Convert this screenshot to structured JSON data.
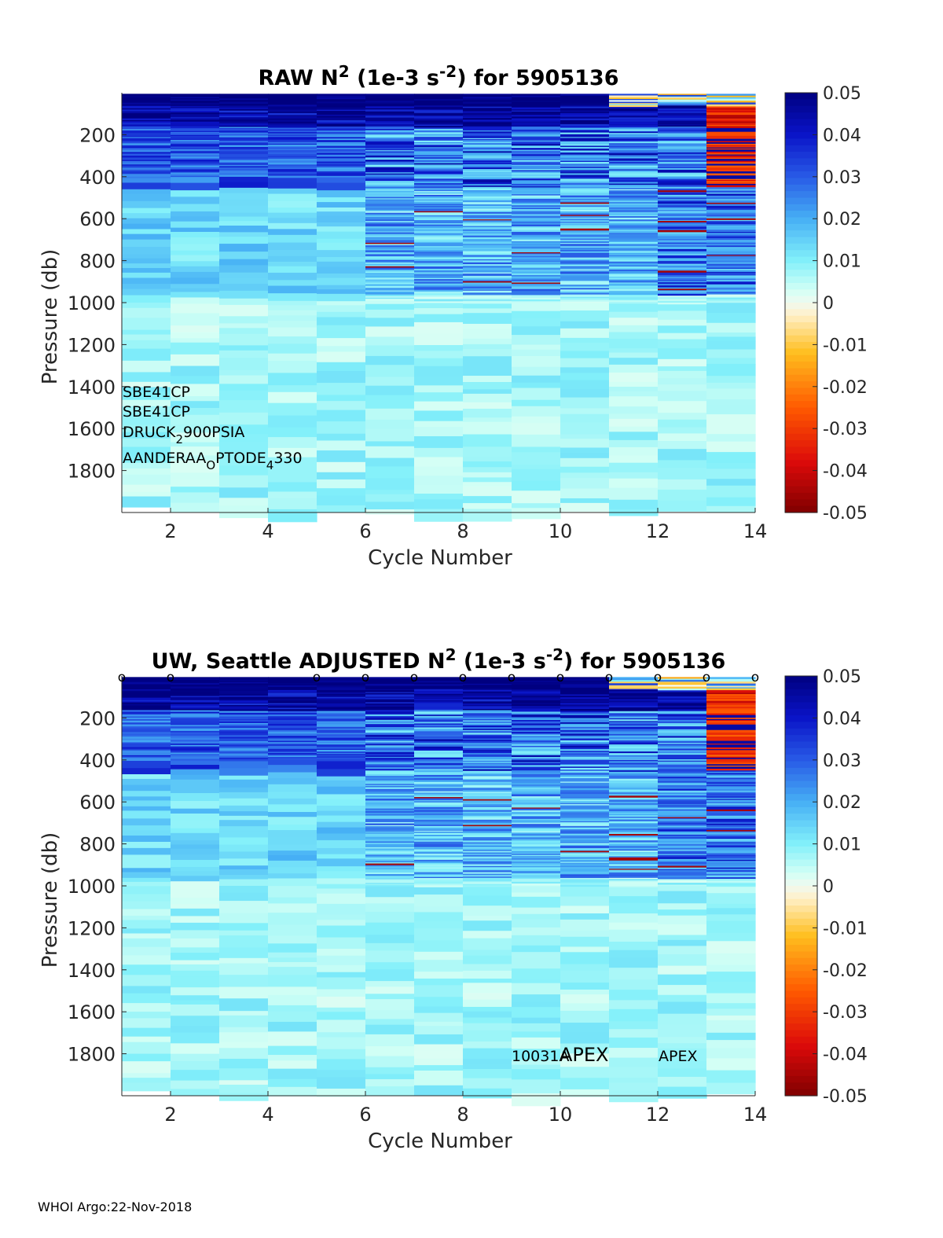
{
  "chart_data": [
    {
      "type": "heatmap",
      "title_parts": [
        "RAW N",
        "2",
        " (1e-3 s",
        "-2",
        ") for 5905136"
      ],
      "xlabel": "Cycle Number",
      "ylabel": "Pressure (db)",
      "xlim": [
        1,
        14
      ],
      "ylim": [
        0,
        2000
      ],
      "xticks": [
        "2",
        "4",
        "6",
        "8",
        "10",
        "12",
        "14"
      ],
      "yticks": [
        "200",
        "400",
        "600",
        "800",
        "1000",
        "1200",
        "1400",
        "1600",
        "1800"
      ],
      "colorbar": {
        "clim": [
          -0.05,
          0.05
        ],
        "ticks": [
          "0.05",
          "0.04",
          "0.03",
          "0.02",
          "0.01",
          "0",
          "-0.01",
          "-0.02",
          "-0.03",
          "-0.04",
          "-0.05"
        ]
      },
      "cycles": [
        1,
        2,
        3,
        4,
        5,
        6,
        7,
        8,
        9,
        10,
        11,
        12,
        13
      ],
      "cycle_max_pressure": [
        1950,
        1990,
        1990,
        1990,
        1990,
        1990,
        1990,
        1990,
        1990,
        1990,
        1990,
        1990,
        1990
      ],
      "annotations": [
        {
          "id": "sensor-1",
          "text": "SBE41CP"
        },
        {
          "id": "sensor-2",
          "text": "SBE41CP"
        },
        {
          "id": "sensor-3",
          "parts": [
            "DRUCK",
            "2",
            "900PSIA"
          ],
          "sub": [
            1
          ]
        },
        {
          "id": "sensor-4",
          "parts": [
            "AANDERAA",
            "O",
            "PTODE",
            "4",
            "330"
          ],
          "sub": [
            1,
            3
          ]
        }
      ],
      "markers": []
    },
    {
      "type": "heatmap",
      "title_parts": [
        "UW, Seattle  ADJUSTED N",
        "2",
        " (1e-3 s",
        "-2",
        ") for 5905136"
      ],
      "xlabel": "Cycle Number",
      "ylabel": "Pressure (db)",
      "xlim": [
        1,
        14
      ],
      "ylim": [
        0,
        2000
      ],
      "xticks": [
        "2",
        "4",
        "6",
        "8",
        "10",
        "12",
        "14"
      ],
      "yticks": [
        "200",
        "400",
        "600",
        "800",
        "1000",
        "1200",
        "1400",
        "1600",
        "1800"
      ],
      "colorbar": {
        "clim": [
          -0.05,
          0.05
        ],
        "ticks": [
          "0.05",
          "0.04",
          "0.03",
          "0.02",
          "0.01",
          "0",
          "-0.01",
          "-0.02",
          "-0.03",
          "-0.04",
          "-0.05"
        ]
      },
      "cycles": [
        1,
        2,
        3,
        4,
        5,
        6,
        7,
        8,
        9,
        10,
        11,
        12,
        13
      ],
      "cycle_max_pressure": [
        1950,
        1990,
        1990,
        1990,
        1990,
        1990,
        1990,
        1990,
        1990,
        1990,
        1990,
        1990,
        1990
      ],
      "annotations": [
        {
          "id": "float-id",
          "text": "10031A"
        },
        {
          "id": "platform-apex-large",
          "text": "APEX"
        },
        {
          "id": "platform-apex-small",
          "text": "APEX"
        }
      ],
      "markers": {
        "symbol": "o",
        "x": [
          1,
          2,
          5,
          6,
          7,
          8,
          9,
          10,
          11,
          12,
          13,
          14
        ]
      }
    }
  ],
  "footer": "WHOI Argo:22-Nov-2018"
}
